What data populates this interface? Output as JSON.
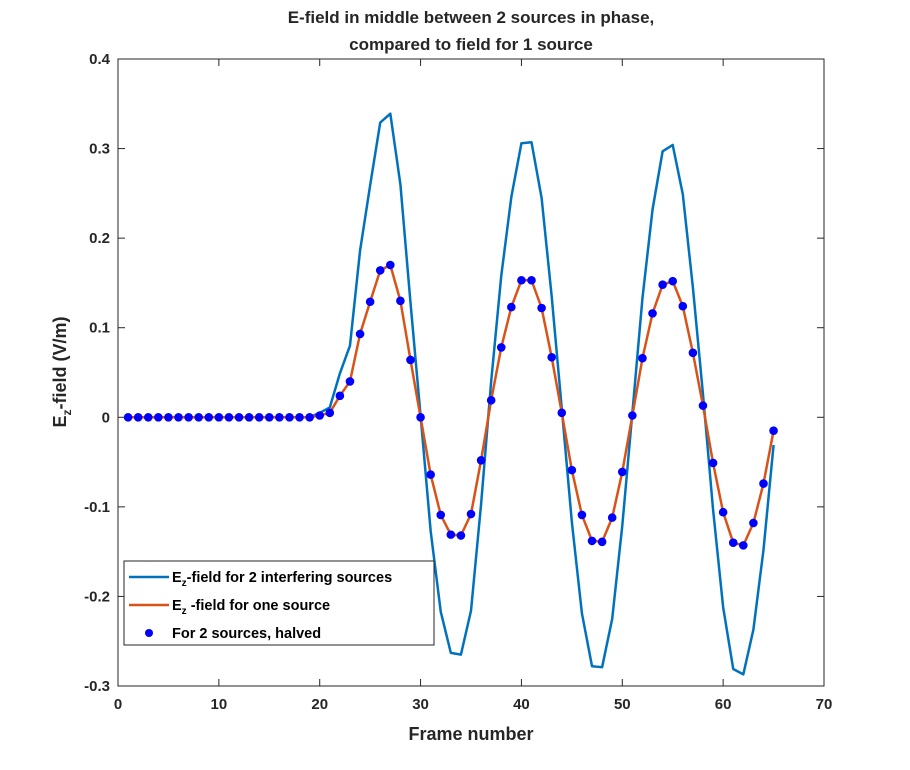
{
  "chart_data": {
    "type": "line",
    "title": [
      "E-field in middle between 2 sources in phase,",
      "compared to field for 1 source"
    ],
    "xlabel": "Frame number",
    "ylabel": {
      "main": "E",
      "sub": "z",
      "rest": "-field (V/m)"
    },
    "xlim": [
      0,
      70
    ],
    "ylim": [
      -0.3,
      0.4
    ],
    "xticks": [
      0,
      10,
      20,
      30,
      40,
      50,
      60,
      70
    ],
    "yticks": [
      -0.3,
      -0.2,
      -0.1,
      0,
      0.1,
      0.2,
      0.3,
      0.4
    ],
    "xticklabels": [
      "0",
      "10",
      "20",
      "30",
      "40",
      "50",
      "60",
      "70"
    ],
    "yticklabels": [
      "-0.3",
      "-0.2",
      "-0.1",
      "0",
      "0.1",
      "0.2",
      "0.3",
      "0.4"
    ],
    "grid": false,
    "legend_position": "bottom-left",
    "x": [
      1,
      2,
      3,
      4,
      5,
      6,
      7,
      8,
      9,
      10,
      11,
      12,
      13,
      14,
      15,
      16,
      17,
      18,
      19,
      20,
      21,
      22,
      23,
      24,
      25,
      26,
      27,
      28,
      29,
      30,
      31,
      32,
      33,
      34,
      35,
      36,
      37,
      38,
      39,
      40,
      41,
      42,
      43,
      44,
      45,
      46,
      47,
      48,
      49,
      50,
      51,
      52,
      53,
      54,
      55,
      56,
      57,
      58,
      59,
      60,
      61,
      62,
      63,
      64,
      65
    ],
    "series": [
      {
        "name": {
          "main": "E",
          "sub": "z",
          "rest": "-field for 2 interfering sources"
        },
        "color": "#0072BD",
        "style": "line",
        "values": [
          0,
          0,
          0,
          0,
          0,
          0,
          0,
          0,
          0,
          0,
          0,
          0,
          0,
          0,
          0,
          0,
          0,
          0,
          0,
          0.005,
          0.011,
          0.049,
          0.08,
          0.186,
          0.259,
          0.329,
          0.339,
          0.26,
          0.128,
          0.002,
          -0.127,
          -0.217,
          -0.263,
          -0.265,
          -0.216,
          -0.097,
          0.04,
          0.158,
          0.246,
          0.306,
          0.307,
          0.245,
          0.135,
          0.01,
          -0.117,
          -0.219,
          -0.278,
          -0.279,
          -0.225,
          -0.121,
          0.005,
          0.133,
          0.232,
          0.297,
          0.304,
          0.249,
          0.145,
          0.026,
          -0.103,
          -0.212,
          -0.281,
          -0.287,
          -0.237,
          -0.148,
          -0.031
        ]
      },
      {
        "name": {
          "main": "E",
          "sub": "z",
          "rest": " -field for one source"
        },
        "color": "#D95319",
        "style": "line",
        "values": [
          0,
          0,
          0,
          0,
          0,
          0,
          0,
          0,
          0,
          0,
          0,
          0,
          0,
          0,
          0,
          0,
          0,
          0,
          0,
          0.002,
          0.005,
          0.024,
          0.04,
          0.093,
          0.129,
          0.164,
          0.17,
          0.13,
          0.064,
          0.0,
          -0.064,
          -0.109,
          -0.131,
          -0.132,
          -0.108,
          -0.048,
          0.019,
          0.078,
          0.123,
          0.153,
          0.153,
          0.122,
          0.067,
          0.005,
          -0.059,
          -0.109,
          -0.138,
          -0.139,
          -0.112,
          -0.061,
          0.002,
          0.066,
          0.116,
          0.148,
          0.152,
          0.124,
          0.072,
          0.013,
          -0.051,
          -0.106,
          -0.14,
          -0.143,
          -0.118,
          -0.074,
          -0.015
        ]
      },
      {
        "name": {
          "main": "For 2 sources, halved",
          "sub": "",
          "rest": ""
        },
        "color": "#0000FF",
        "style": "markers",
        "values": [
          0,
          0,
          0,
          0,
          0,
          0,
          0,
          0,
          0,
          0,
          0,
          0,
          0,
          0,
          0,
          0,
          0,
          0,
          0,
          0.002,
          0.005,
          0.024,
          0.04,
          0.093,
          0.129,
          0.164,
          0.17,
          0.13,
          0.064,
          0.0,
          -0.064,
          -0.109,
          -0.131,
          -0.132,
          -0.108,
          -0.048,
          0.019,
          0.078,
          0.123,
          0.153,
          0.153,
          0.122,
          0.067,
          0.005,
          -0.059,
          -0.109,
          -0.138,
          -0.139,
          -0.112,
          -0.061,
          0.002,
          0.066,
          0.116,
          0.148,
          0.152,
          0.124,
          0.072,
          0.013,
          -0.051,
          -0.106,
          -0.14,
          -0.143,
          -0.118,
          -0.074,
          -0.015
        ]
      }
    ]
  }
}
